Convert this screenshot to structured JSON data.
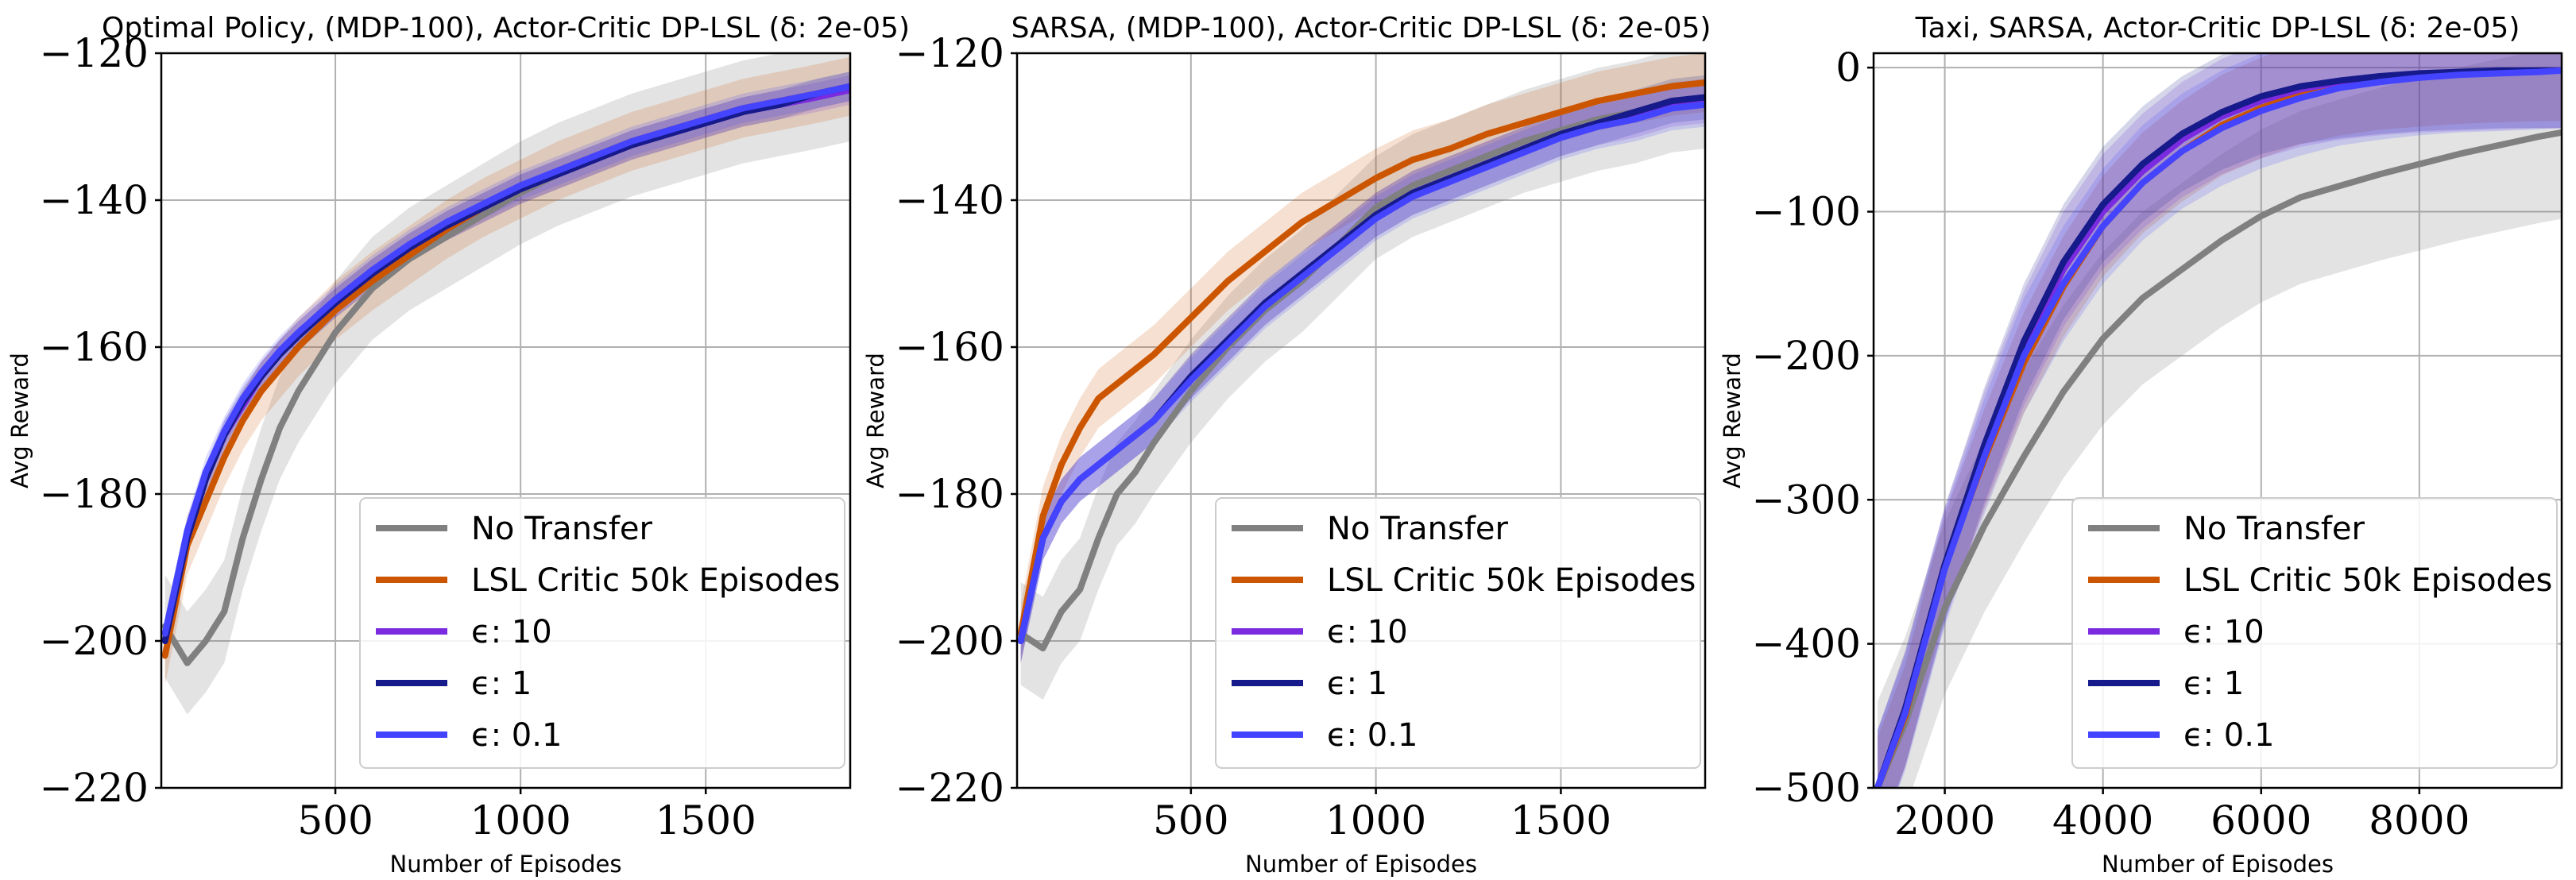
{
  "chart_data": [
    {
      "type": "line",
      "title": "Optimal Policy, (MDP-100), Actor-Critic DP-LSL (δ: 2e-05)",
      "xlabel": "Number of Episodes",
      "ylabel": "Avg Reward",
      "xlim": [
        30,
        1890
      ],
      "ylim": [
        -220,
        -120
      ],
      "xticks": [
        "500",
        "1000",
        "1500"
      ],
      "xtick_values": [
        500,
        1000,
        1500
      ],
      "yticks": [
        "−120",
        "−140",
        "−160",
        "−180",
        "−200",
        "−220"
      ],
      "ytick_values": [
        -120,
        -140,
        -160,
        -180,
        -200,
        -220
      ],
      "grid": true,
      "legend_position": "lower-right",
      "x": [
        40,
        100,
        150,
        200,
        250,
        300,
        350,
        400,
        500,
        600,
        700,
        800,
        900,
        1000,
        1100,
        1200,
        1300,
        1400,
        1500,
        1600,
        1700,
        1800,
        1890
      ],
      "series": [
        {
          "name": "No Transfer",
          "color": "#808080",
          "band": 7,
          "values": [
            -198,
            -203,
            -200,
            -196,
            -186,
            -178,
            -171,
            -166,
            -158,
            -152,
            -148,
            -145,
            -142,
            -139,
            -136.5,
            -134.5,
            -132.5,
            -131,
            -129.5,
            -128,
            -127,
            -126,
            -125
          ]
        },
        {
          "name": "LSL Critic 50k Episodes",
          "color": "#cc5500",
          "band": 4,
          "values": [
            -202,
            -187,
            -181,
            -175,
            -170,
            -166,
            -163,
            -160,
            -155,
            -151,
            -147.5,
            -144,
            -141,
            -138.5,
            -136,
            -134,
            -132,
            -130.5,
            -129,
            -127.5,
            -126.5,
            -125.5,
            -124.5
          ]
        },
        {
          "name": "ϵ: 10",
          "color": "#7a2be0",
          "band": 2,
          "values": [
            -200,
            -186,
            -178,
            -172,
            -168,
            -164,
            -161,
            -158.5,
            -154,
            -150,
            -146.5,
            -143.5,
            -141,
            -138.5,
            -136.5,
            -134.5,
            -132.5,
            -131,
            -129.5,
            -128,
            -127,
            -126,
            -125
          ]
        },
        {
          "name": "ϵ: 1",
          "color": "#161a8a",
          "band": 2,
          "values": [
            -200,
            -186,
            -178,
            -172,
            -167.5,
            -164,
            -161,
            -158.5,
            -154,
            -150,
            -146.5,
            -143.5,
            -141,
            -138.5,
            -136.5,
            -134.5,
            -132.5,
            -131,
            -129.5,
            -128,
            -127,
            -125.5,
            -124.5
          ]
        },
        {
          "name": "ϵ: 0.1",
          "color": "#4444ff",
          "band": 2,
          "values": [
            -199,
            -185,
            -177,
            -171.5,
            -167,
            -163.5,
            -160.5,
            -158,
            -153.5,
            -149.5,
            -146,
            -143,
            -140.5,
            -138,
            -136,
            -134,
            -132,
            -130.5,
            -129,
            -127.5,
            -126.5,
            -125.5,
            -124.5
          ]
        }
      ]
    },
    {
      "type": "line",
      "title": "SARSA, (MDP-100), Actor-Critic DP-LSL (δ: 2e-05)",
      "xlabel": "Number of Episodes",
      "ylabel": "Avg Reward",
      "xlim": [
        30,
        1890
      ],
      "ylim": [
        -220,
        -120
      ],
      "xticks": [
        "500",
        "1000",
        "1500"
      ],
      "xtick_values": [
        500,
        1000,
        1500
      ],
      "yticks": [
        "−120",
        "−140",
        "−160",
        "−180",
        "−200",
        "−220"
      ],
      "ytick_values": [
        -120,
        -140,
        -160,
        -180,
        -200,
        -220
      ],
      "grid": true,
      "legend_position": "lower-right",
      "x": [
        40,
        100,
        150,
        200,
        250,
        300,
        350,
        400,
        500,
        600,
        700,
        800,
        900,
        1000,
        1100,
        1200,
        1300,
        1400,
        1500,
        1600,
        1700,
        1800,
        1890
      ],
      "series": [
        {
          "name": "No Transfer",
          "color": "#808080",
          "band": 7,
          "values": [
            -199,
            -201,
            -196,
            -193,
            -186,
            -180,
            -177,
            -173,
            -166,
            -160,
            -155,
            -151,
            -146,
            -141,
            -138,
            -136,
            -134,
            -132,
            -130.5,
            -129,
            -128,
            -126.5,
            -126
          ]
        },
        {
          "name": "LSL Critic 50k Episodes",
          "color": "#cc5500",
          "band": 4,
          "values": [
            -199,
            -183,
            -176,
            -171,
            -167,
            -165,
            -163,
            -161,
            -156,
            -151,
            -147,
            -143,
            -140,
            -137,
            -134.5,
            -133,
            -131,
            -129.5,
            -128,
            -126.5,
            -125.5,
            -124.5,
            -124
          ]
        },
        {
          "name": "ϵ: 10",
          "color": "#7a2be0",
          "band": 3,
          "values": [
            -200,
            -186,
            -181,
            -178,
            -176,
            -174,
            -172,
            -170,
            -164,
            -159,
            -154,
            -150,
            -146,
            -142,
            -139,
            -137,
            -135,
            -133,
            -131,
            -129.5,
            -128.5,
            -127,
            -126.5
          ]
        },
        {
          "name": "ϵ: 1",
          "color": "#161a8a",
          "band": 3,
          "values": [
            -200,
            -186,
            -181,
            -178,
            -176,
            -174,
            -172,
            -170,
            -164,
            -159,
            -154,
            -150,
            -146,
            -142,
            -139,
            -137,
            -135,
            -133,
            -131,
            -129.5,
            -128,
            -126.5,
            -126
          ]
        },
        {
          "name": "ϵ: 0.1",
          "color": "#4444ff",
          "band": 3,
          "values": [
            -200,
            -186,
            -181,
            -178,
            -176,
            -174,
            -172,
            -170,
            -164.5,
            -159.5,
            -154.5,
            -150.5,
            -146.5,
            -142.5,
            -139.5,
            -137.5,
            -135.5,
            -133.5,
            -131.5,
            -130,
            -129,
            -127.5,
            -127
          ]
        }
      ]
    },
    {
      "type": "line",
      "title": "Taxi, SARSA, Actor-Critic DP-LSL (δ: 2e-05)",
      "xlabel": "Number of Episodes",
      "ylabel": "Avg Reward",
      "xlim": [
        1100,
        9800
      ],
      "ylim": [
        -500,
        10
      ],
      "xticks": [
        "2000",
        "4000",
        "6000",
        "8000"
      ],
      "xtick_values": [
        2000,
        4000,
        6000,
        8000
      ],
      "yticks": [
        "0",
        "−100",
        "−200",
        "−300",
        "−400",
        "−500"
      ],
      "ytick_values": [
        0,
        -100,
        -200,
        -300,
        -400,
        -500
      ],
      "grid": true,
      "legend_position": "lower-right",
      "x": [
        1150,
        1500,
        2000,
        2500,
        3000,
        3500,
        4000,
        4500,
        5000,
        5500,
        6000,
        6500,
        7000,
        7500,
        8000,
        8500,
        9000,
        9500,
        9800
      ],
      "series": [
        {
          "name": "No Transfer",
          "color": "#808080",
          "band": 60,
          "values": [
            -500,
            -455,
            -375,
            -318,
            -270,
            -225,
            -188,
            -160,
            -140,
            -120,
            -103,
            -90,
            -82,
            -74,
            -67,
            -60,
            -54,
            -48,
            -45
          ]
        },
        {
          "name": "LSL Critic 50k Episodes",
          "color": "#cc5500",
          "band": 35,
          "values": [
            -500,
            -450,
            -345,
            -272,
            -205,
            -152,
            -110,
            -80,
            -58,
            -40,
            -28,
            -18,
            -12,
            -8,
            -6,
            -4,
            -3,
            -2,
            -2
          ]
        },
        {
          "name": "ϵ: 10",
          "color": "#7a2be0",
          "band": 40,
          "values": [
            -500,
            -445,
            -345,
            -265,
            -195,
            -140,
            -100,
            -72,
            -50,
            -34,
            -23,
            -15,
            -10,
            -7,
            -5,
            -4,
            -3,
            -2,
            -2
          ]
        },
        {
          "name": "ϵ: 1",
          "color": "#161a8a",
          "band": 40,
          "values": [
            -500,
            -445,
            -345,
            -262,
            -190,
            -135,
            -95,
            -67,
            -46,
            -31,
            -20,
            -13,
            -9,
            -6,
            -4,
            -3,
            -2,
            -2,
            -2
          ]
        },
        {
          "name": "ϵ: 0.1",
          "color": "#4444ff",
          "band": 40,
          "values": [
            -500,
            -448,
            -348,
            -270,
            -200,
            -150,
            -110,
            -80,
            -58,
            -42,
            -30,
            -21,
            -14,
            -10,
            -7,
            -5,
            -4,
            -3,
            -2
          ]
        }
      ]
    }
  ]
}
